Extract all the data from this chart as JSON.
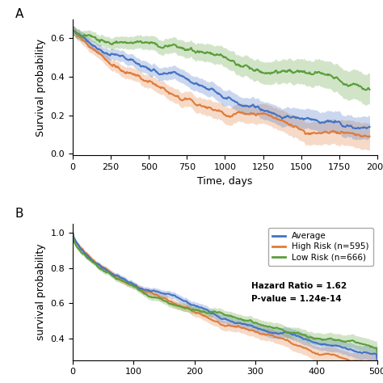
{
  "panel_A": {
    "xlabel": "Time, days",
    "ylabel": "Survival probability",
    "xlim": [
      0,
      2000
    ],
    "ylim": [
      -0.01,
      0.7
    ],
    "yticks": [
      0.0,
      0.2,
      0.4,
      0.6
    ],
    "xticks": [
      0,
      250,
      500,
      750,
      1000,
      1250,
      1500,
      1750,
      2000
    ],
    "avg_color": "#4472C4",
    "high_color": "#E07B39",
    "low_color": "#5B9E3A"
  },
  "panel_B": {
    "ylabel": "survival probability",
    "xlim": [
      0,
      500
    ],
    "ylim": [
      0.28,
      1.05
    ],
    "yticks": [
      0.4,
      0.6,
      0.8,
      1.0
    ],
    "legend_labels": [
      "Average",
      "High Risk (n=595)",
      "Low Risk (n=666)"
    ],
    "hazard_ratio": "Hazard Ratio = 1.62",
    "pvalue": "P-value = 1.24e-14",
    "avg_color": "#4472C4",
    "high_color": "#E07B39",
    "low_color": "#5B9E3A"
  }
}
